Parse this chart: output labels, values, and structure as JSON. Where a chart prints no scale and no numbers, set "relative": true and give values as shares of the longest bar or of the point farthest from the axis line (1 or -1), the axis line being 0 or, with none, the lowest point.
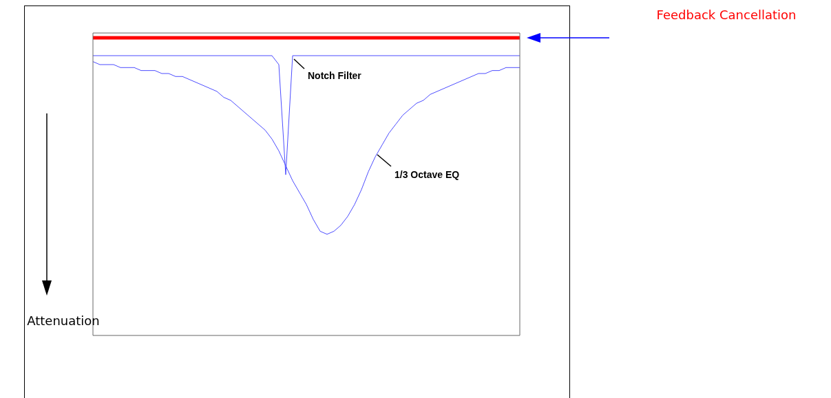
{
  "chart_data": {
    "type": "line",
    "relative": true,
    "ylabel": "Attenuation",
    "marker": "none",
    "line_style": "solid",
    "categories": [
      null,
      null,
      null,
      null,
      null,
      null,
      null,
      null,
      null,
      null,
      null,
      null,
      null,
      null,
      null,
      null,
      null,
      null,
      null,
      null,
      null,
      null,
      null,
      null,
      null,
      null,
      null,
      null,
      null,
      null,
      null,
      null,
      null,
      null,
      null,
      null,
      null,
      null,
      null,
      null,
      null,
      null,
      null,
      null,
      null,
      null,
      null,
      null,
      null,
      null,
      null,
      null,
      null,
      null,
      null,
      null,
      null,
      null,
      null,
      null,
      null,
      null,
      null
    ],
    "series": [
      {
        "name": "Feedback Cancellation",
        "color": "#ff0000",
        "values": [
          1,
          1,
          1,
          1,
          1,
          1,
          1,
          1,
          1,
          1,
          1,
          1,
          1,
          1,
          1,
          1,
          1,
          1,
          1,
          1,
          1,
          1,
          1,
          1,
          1,
          1,
          1,
          1,
          1,
          1,
          1,
          1,
          1,
          1,
          1,
          1,
          1,
          1,
          1,
          1,
          1,
          1,
          1,
          1,
          1,
          1,
          1,
          1,
          1,
          1,
          1,
          1,
          1,
          1,
          1,
          1,
          1,
          1,
          1,
          1,
          1,
          1,
          1
        ]
      },
      {
        "name": "Notch Filter",
        "color": "#4d4dff",
        "values": [
          0.94,
          0.94,
          0.94,
          0.94,
          0.94,
          0.94,
          0.94,
          0.94,
          0.94,
          0.94,
          0.94,
          0.94,
          0.94,
          0.94,
          0.94,
          0.94,
          0.94,
          0.94,
          0.94,
          0.94,
          0.94,
          0.94,
          0.94,
          0.94,
          0.94,
          0.94,
          0.94,
          0.91,
          0.54,
          0.94,
          0.94,
          0.94,
          0.94,
          0.94,
          0.94,
          0.94,
          0.94,
          0.94,
          0.94,
          0.94,
          0.94,
          0.94,
          0.94,
          0.94,
          0.94,
          0.94,
          0.94,
          0.94,
          0.94,
          0.94,
          0.94,
          0.94,
          0.94,
          0.94,
          0.94,
          0.94,
          0.94,
          0.94,
          0.94,
          0.94,
          0.94,
          0.94,
          0.94
        ]
      },
      {
        "name": "1/3 Octave EQ",
        "color": "#4d4dff",
        "values": [
          0.92,
          0.91,
          0.91,
          0.91,
          0.9,
          0.9,
          0.9,
          0.89,
          0.89,
          0.89,
          0.88,
          0.88,
          0.87,
          0.87,
          0.86,
          0.85,
          0.84,
          0.83,
          0.82,
          0.8,
          0.79,
          0.77,
          0.75,
          0.73,
          0.71,
          0.69,
          0.66,
          0.62,
          0.57,
          0.52,
          0.48,
          0.44,
          0.39,
          0.35,
          0.34,
          0.35,
          0.37,
          0.4,
          0.44,
          0.49,
          0.55,
          0.6,
          0.64,
          0.68,
          0.71,
          0.74,
          0.76,
          0.78,
          0.79,
          0.81,
          0.82,
          0.83,
          0.84,
          0.85,
          0.86,
          0.87,
          0.88,
          0.88,
          0.89,
          0.89,
          0.9,
          0.9,
          0.9
        ]
      }
    ]
  }
}
